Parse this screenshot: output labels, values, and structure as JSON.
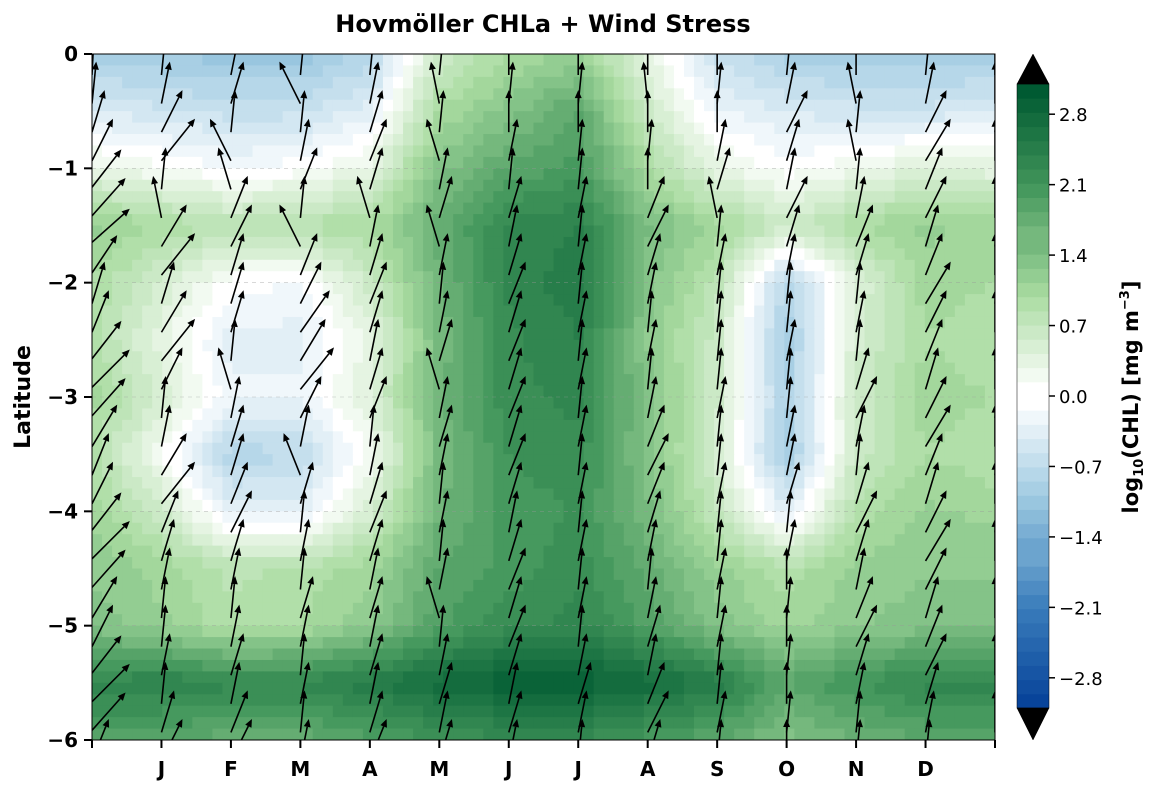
{
  "chart_data": {
    "type": "heatmap",
    "title": "Hovmöller CHLa + Wind Stress",
    "ylabel": "Latitude",
    "xlabel": "",
    "x_ticks": [
      "",
      "J",
      "F",
      "M",
      "A",
      "M",
      "J",
      "J",
      "A",
      "S",
      "O",
      "N",
      "D",
      ""
    ],
    "xlim": [
      0,
      13
    ],
    "ylim": [
      -6,
      0
    ],
    "y_ticks": [
      0,
      -1,
      -2,
      -3,
      -4,
      -5,
      -6
    ],
    "y_tick_labels": [
      "0",
      "−1",
      "−2",
      "−3",
      "−4",
      "−5",
      "−6"
    ],
    "grid": "horizontal dashed",
    "colorbar": {
      "label": "log10(CHL) [mg m−3]",
      "label_main": "log",
      "label_sub": "10",
      "label_rest": "(CHL) [mg m",
      "label_sup": "−3",
      "label_end": "]",
      "range": [
        -3.1,
        3.1
      ],
      "ticks": [
        2.8,
        2.1,
        1.4,
        0.7,
        0.0,
        -0.7,
        -1.4,
        -2.1,
        -2.8
      ],
      "tick_labels": [
        "2.8",
        "2.1",
        "1.4",
        "0.7",
        "0.0",
        "−0.7",
        "−1.4",
        "−2.1",
        "−2.8"
      ],
      "colormap": "blue-white-green",
      "colors": [
        "#08449a",
        "#3a7dbb",
        "#9ecae1",
        "#ffffff",
        "#a8dba0",
        "#41955a",
        "#005a32"
      ],
      "extend": "both"
    },
    "heatmap": {
      "x": [
        0,
        1,
        2,
        3,
        4,
        5,
        6,
        7,
        8,
        9,
        10,
        11,
        12,
        13
      ],
      "lat": [
        0,
        -0.5,
        -1,
        -1.5,
        -2,
        -2.5,
        -3,
        -3.5,
        -4,
        -4.5,
        -5,
        -5.5,
        -6
      ],
      "values": [
        [
          -0.9,
          -1.0,
          -1.1,
          -1.1,
          -0.8,
          0.6,
          1.0,
          1.2,
          0.3,
          -0.6,
          -0.9,
          -1.0,
          -1.0,
          -0.9
        ],
        [
          -0.4,
          -0.5,
          -0.6,
          -0.6,
          -0.3,
          1.0,
          1.4,
          1.8,
          0.6,
          -0.2,
          -0.4,
          -0.5,
          -0.5,
          -0.4
        ],
        [
          0.3,
          0.1,
          -0.1,
          0.0,
          0.3,
          1.4,
          1.8,
          2.0,
          1.0,
          0.3,
          0.0,
          0.2,
          0.4,
          0.3
        ],
        [
          1.2,
          1.0,
          0.8,
          0.9,
          1.0,
          1.7,
          2.3,
          2.4,
          1.5,
          1.1,
          0.6,
          1.0,
          1.2,
          1.1
        ],
        [
          1.0,
          0.5,
          0.0,
          -0.1,
          0.6,
          1.6,
          2.3,
          2.5,
          1.4,
          0.8,
          -0.8,
          0.4,
          1.1,
          1.0
        ],
        [
          0.9,
          0.3,
          -0.3,
          -0.3,
          0.3,
          1.5,
          2.2,
          2.4,
          1.3,
          0.6,
          -1.0,
          0.5,
          1.0,
          0.9
        ],
        [
          1.1,
          0.5,
          -0.2,
          -0.2,
          0.4,
          1.6,
          2.2,
          2.3,
          1.4,
          0.6,
          -0.9,
          0.6,
          1.1,
          1.0
        ],
        [
          0.9,
          0.1,
          -0.8,
          -0.7,
          0.1,
          1.5,
          2.1,
          2.2,
          1.4,
          0.5,
          -1.0,
          0.6,
          1.0,
          0.9
        ],
        [
          1.1,
          0.6,
          -0.3,
          -0.3,
          0.5,
          1.6,
          2.0,
          2.1,
          1.5,
          0.7,
          -0.3,
          0.9,
          1.2,
          1.1
        ],
        [
          1.3,
          1.1,
          0.8,
          0.9,
          1.1,
          1.8,
          2.0,
          2.2,
          1.7,
          1.2,
          0.9,
          1.2,
          1.3,
          1.3
        ],
        [
          1.4,
          1.2,
          0.9,
          1.0,
          1.3,
          1.9,
          2.2,
          2.3,
          1.9,
          1.4,
          1.1,
          1.3,
          1.4,
          1.4
        ],
        [
          2.3,
          2.4,
          2.3,
          2.3,
          2.5,
          2.8,
          3.0,
          3.0,
          2.8,
          2.5,
          1.8,
          2.1,
          2.3,
          2.3
        ],
        [
          1.9,
          1.8,
          1.7,
          1.7,
          1.9,
          2.1,
          2.2,
          2.2,
          2.0,
          1.8,
          1.4,
          1.6,
          1.8,
          1.8
        ]
      ]
    },
    "quiver": {
      "lat_step": 0.25,
      "columns": [
        {
          "x": 0,
          "u": [
            0.05,
            0.1,
            0.3,
            0.5,
            0.7,
            0.8,
            0.9,
            0.6,
            0.3,
            0.4,
            0.7,
            0.9,
            0.8,
            0.6,
            0.4,
            0.5,
            0.7,
            0.9,
            0.8,
            0.6,
            0.5,
            0.7,
            0.9,
            0.8,
            0.4
          ],
          "v": [
            1.0,
            1.0,
            1.0,
            1.0,
            0.9,
            0.9,
            0.8,
            0.9,
            1.0,
            1.0,
            0.9,
            0.9,
            0.9,
            1.0,
            1.0,
            1.0,
            0.9,
            0.9,
            0.9,
            1.0,
            1.0,
            0.9,
            0.9,
            0.9,
            1.0
          ]
        },
        {
          "x": 1,
          "u": [
            0.1,
            0.2,
            0.5,
            0.8,
            0.1,
            -0.2,
            0.6,
            0.8,
            0.3,
            0.6,
            0.8,
            0.5,
            0.1,
            0.2,
            0.6,
            0.8,
            0.4,
            0.3,
            0.2,
            0.1,
            0.1,
            0.2,
            0.1,
            0.3,
            0.5
          ]
        },
        {
          "x": 2,
          "u": [
            0.2,
            0.3,
            0.1,
            -0.5,
            -0.3,
            0.4,
            0.5,
            0.3,
            0.3,
            0.3,
            0.1,
            -0.3,
            0.2,
            0.3,
            0.3,
            0.4,
            0.5,
            0.3,
            0.2,
            0.1,
            0.2,
            0.3,
            0.2,
            0.4,
            0.5
          ]
        },
        {
          "x": 3,
          "u": [
            0.1,
            -0.5,
            0.1,
            0.2,
            0.4,
            0.1,
            -0.5,
            0.4,
            0.5,
            0.7,
            0.6,
            0.8,
            0.5,
            0.2,
            -0.4,
            0.3,
            0.1,
            0.2,
            0.1,
            0.3,
            0.2,
            0.1,
            0.2,
            0.1,
            0.2
          ]
        },
        {
          "x": 4,
          "u": [
            0.1,
            0.2,
            0.3,
            0.4,
            0.3,
            -0.3,
            0.2,
            0.3,
            0.4,
            0.3,
            0.2,
            0.3,
            0.4,
            0.1,
            0.2,
            0.3,
            0.4,
            0.3,
            0.2,
            0.3,
            0.2,
            0.3,
            0.2,
            0.3,
            0.4
          ]
        },
        {
          "x": 5,
          "u": [
            0.1,
            -0.2,
            0.1,
            -0.3,
            0.2,
            0.3,
            -0.3,
            0.2,
            0.1,
            0.2,
            0.3,
            -0.3,
            0.2,
            0.3,
            0.2,
            0.1,
            0.2,
            0.1,
            0.2,
            -0.3,
            0.1,
            0.2,
            0.3,
            0.2,
            0.3
          ]
        },
        {
          "x": 6,
          "u": [
            0.0,
            0.1,
            0.0,
            0.2,
            0.1,
            0.3,
            0.2,
            0.3,
            0.4,
            0.3,
            0.4,
            0.3,
            0.4,
            0.3,
            0.4,
            0.3,
            0.2,
            0.3,
            0.4,
            0.3,
            0.4,
            0.3,
            0.2,
            0.3,
            0.2
          ]
        },
        {
          "x": 7,
          "u": [
            0.0,
            0.1,
            0.0,
            0.1,
            0.1,
            0.2,
            0.1,
            0.2,
            0.1,
            0.2,
            0.1,
            0.2,
            0.1,
            0.2,
            0.1,
            0.2,
            0.1,
            0.2,
            0.1,
            0.2,
            0.1,
            0.2,
            0.3,
            0.2,
            0.1
          ]
        },
        {
          "x": 8,
          "u": [
            0.0,
            -0.1,
            0.0,
            0.1,
            0.0,
            0.4,
            0.5,
            0.3,
            0.2,
            0.1,
            0.2,
            0.1,
            0.2,
            0.4,
            0.5,
            0.4,
            0.3,
            0.2,
            0.1,
            0.2,
            0.3,
            0.2,
            0.4,
            0.5,
            0.3
          ]
        },
        {
          "x": 9,
          "u": [
            0.0,
            0.1,
            0.0,
            0.2,
            0.3,
            -0.2,
            0.1,
            0.2,
            0.1,
            0.1,
            0.1,
            0.1,
            0.2,
            0.1,
            0.1,
            0.2,
            0.1,
            0.1,
            0.2,
            0.1,
            0.2,
            0.1,
            0.1,
            0.2,
            0.1
          ]
        },
        {
          "x": 10,
          "u": [
            0.1,
            0.2,
            0.5,
            0.3,
            0.2,
            0.5,
            0.3,
            0.2,
            0.1,
            0.1,
            0.2,
            0.1,
            0.1,
            0.2,
            0.2,
            0.3,
            0.1,
            0.2,
            0.0,
            0.1,
            0.0,
            0.1,
            0.0,
            0.1,
            0.0
          ]
        },
        {
          "x": 11,
          "u": [
            0.0,
            -0.2,
            0.1,
            -0.2,
            0.1,
            0.2,
            0.4,
            0.3,
            0.1,
            0.2,
            0.1,
            0.3,
            0.5,
            0.2,
            0.1,
            0.3,
            0.5,
            0.3,
            0.2,
            0.4,
            0.5,
            0.3,
            0.2,
            0.1,
            0.1
          ]
        },
        {
          "x": 12,
          "u": [
            0.1,
            0.2,
            0.5,
            0.6,
            0.4,
            0.5,
            0.3,
            0.4,
            0.6,
            0.5,
            0.4,
            0.3,
            0.5,
            0.6,
            0.4,
            0.3,
            0.5,
            0.6,
            0.5,
            0.3,
            0.4,
            0.5,
            0.3,
            0.2,
            0.1
          ]
        },
        {
          "x": 13,
          "u": [
            0.0,
            0.0,
            0.1,
            0.0,
            0.1,
            0.0,
            0.1,
            0.0,
            0.1,
            0.0,
            0.1,
            0.0,
            0.1,
            0.0,
            0.1,
            0.0,
            0.1,
            0.0,
            0.1,
            0.0,
            0.1,
            0.0,
            0.1,
            0.0,
            0.1
          ]
        }
      ],
      "v_default": 1.0,
      "color": "#000000"
    }
  }
}
